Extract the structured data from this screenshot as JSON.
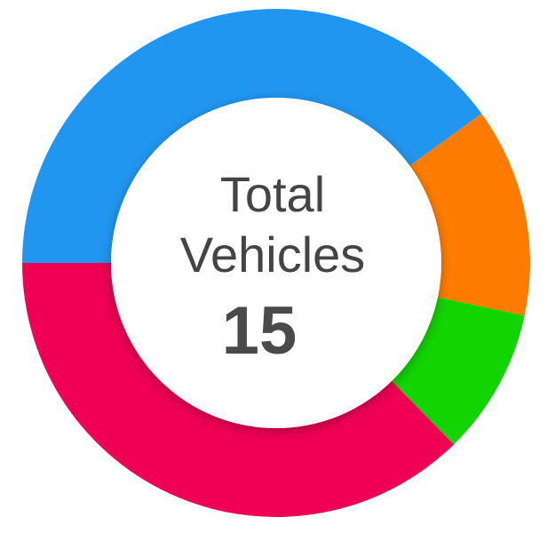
{
  "chart_data": {
    "type": "pie",
    "variant": "donut",
    "title": "",
    "center_label_line1": "Total",
    "center_label_line2": "Vehicles",
    "total": "15",
    "slices": [
      {
        "value": 6,
        "color": "#2196f0"
      },
      {
        "value": 2,
        "color": "#ff7c00"
      },
      {
        "value": 1.4,
        "color": "#12d400"
      },
      {
        "value": 5.6,
        "color": "#ef0053"
      }
    ],
    "legend": "none"
  }
}
